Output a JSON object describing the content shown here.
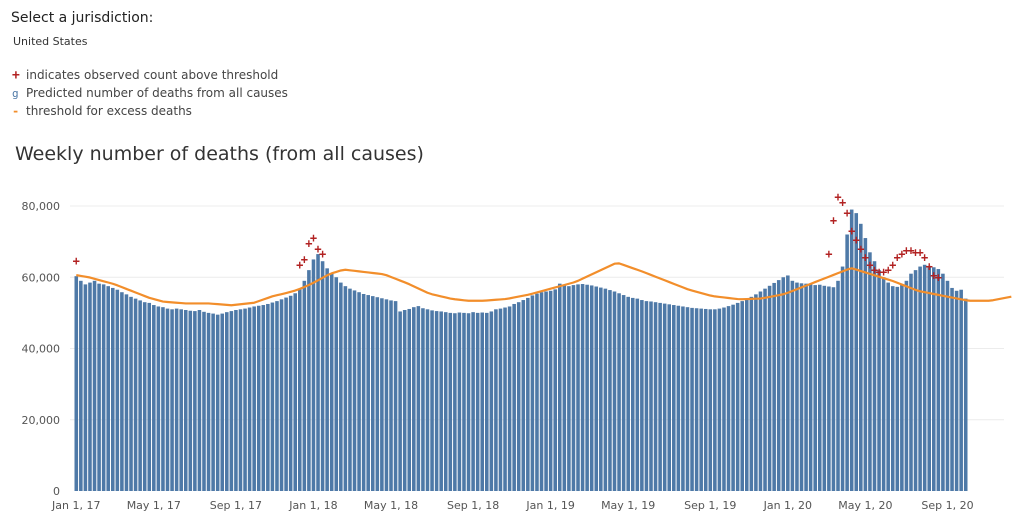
{
  "filter": {
    "label": "Select a jurisdiction:",
    "value": "United States"
  },
  "legend": {
    "items": [
      {
        "symbol": "+",
        "label": "indicates observed count above threshold"
      },
      {
        "symbol": "g",
        "label": "Predicted number of deaths from all causes"
      },
      {
        "symbol": "-",
        "label": "threshold for excess deaths"
      }
    ]
  },
  "colors": {
    "bar": "#4e79a7",
    "threshold": "#f28e2b",
    "marker": "#b22222",
    "grid": "#ececec"
  },
  "chart_data": {
    "type": "bar",
    "title": "Weekly number of deaths (from all causes)",
    "xlabel": "",
    "ylabel": "",
    "ylim": [
      0,
      88000
    ],
    "y_ticks": [
      0,
      20000,
      40000,
      60000,
      80000
    ],
    "y_tick_labels": [
      "0",
      "20,000",
      "40,000",
      "60,000",
      "80,000"
    ],
    "x_tick_labels": [
      {
        "week": 0,
        "label": "Jan 1, 17"
      },
      {
        "week": 17,
        "label": "May 1, 17"
      },
      {
        "week": 35,
        "label": "Sep 1, 17"
      },
      {
        "week": 52,
        "label": "Jan 1, 18"
      },
      {
        "week": 69,
        "label": "May 1, 18"
      },
      {
        "week": 87,
        "label": "Sep 1, 18"
      },
      {
        "week": 104,
        "label": "Jan 1, 19"
      },
      {
        "week": 121,
        "label": "May 1, 19"
      },
      {
        "week": 139,
        "label": "Sep 1, 19"
      },
      {
        "week": 156,
        "label": "Jan 1, 20"
      },
      {
        "week": 173,
        "label": "May 1, 20"
      },
      {
        "week": 191,
        "label": "Sep 1, 20"
      }
    ],
    "grid": true,
    "series": [
      {
        "name": "Predicted number of deaths from all causes",
        "values": [
          60300,
          59000,
          58000,
          58500,
          59000,
          58200,
          58000,
          57500,
          57000,
          56500,
          55800,
          55200,
          54500,
          54000,
          53500,
          53000,
          52800,
          52200,
          51800,
          51600,
          51200,
          51000,
          51200,
          51000,
          50800,
          50600,
          50500,
          50800,
          50300,
          50000,
          49800,
          49500,
          49800,
          50200,
          50500,
          50800,
          51000,
          51200,
          51500,
          51800,
          52000,
          52200,
          52500,
          52900,
          53300,
          53800,
          54300,
          54800,
          55500,
          56800,
          59000,
          62000,
          65000,
          66500,
          64500,
          62500,
          61000,
          60000,
          58500,
          57500,
          56800,
          56300,
          55800,
          55300,
          55000,
          54700,
          54400,
          54100,
          53800,
          53500,
          53300,
          50400,
          50800,
          51100,
          51600,
          51900,
          51300,
          51000,
          50700,
          50500,
          50400,
          50200,
          50000,
          49900,
          50100,
          50000,
          49900,
          50200,
          50000,
          50100,
          50000,
          50400,
          51000,
          51200,
          51500,
          51800,
          52500,
          53000,
          53600,
          54200,
          54900,
          55400,
          55800,
          56000,
          56200,
          56600,
          58200,
          57800,
          57500,
          57800,
          58000,
          58100,
          57900,
          57700,
          57400,
          57100,
          56800,
          56400,
          56000,
          55500,
          55000,
          54500,
          54200,
          54000,
          53600,
          53300,
          53200,
          53000,
          52800,
          52600,
          52400,
          52200,
          52000,
          51800,
          51600,
          51400,
          51300,
          51200,
          51100,
          51000,
          51000,
          51200,
          51500,
          51900,
          52300,
          52800,
          53300,
          53900,
          54500,
          55200,
          56000,
          56800,
          57600,
          58400,
          59200,
          60000,
          60500,
          59000,
          58500,
          58300,
          58200,
          58000,
          57800,
          57900,
          57600,
          57400,
          57200,
          59000,
          63000,
          72000,
          79000,
          78000,
          75000,
          71000,
          67000,
          64500,
          62000,
          60000,
          58500,
          57500,
          57300,
          57800,
          59000,
          61000,
          62000,
          63000,
          63500,
          63200,
          62800,
          62300,
          61000,
          59000,
          57000,
          56200,
          56500,
          54000
        ]
      },
      {
        "name": "threshold for excess deaths",
        "values": [
          60600,
          60375,
          60150,
          59925,
          59575,
          59225,
          58875,
          58525,
          58175,
          57725,
          57225,
          56725,
          56225,
          55725,
          55225,
          54725,
          54225,
          53875,
          53525,
          53175,
          53050,
          52950,
          52850,
          52750,
          52650,
          52650,
          52650,
          52650,
          52650,
          52650,
          52550,
          52450,
          52350,
          52250,
          52150,
          52290,
          52430,
          52570,
          52710,
          52850,
          53300,
          53750,
          54200,
          54650,
          54950,
          55250,
          55575,
          55925,
          56275,
          56725,
          57275,
          57825,
          58450,
          59150,
          59850,
          60550,
          61100,
          61500,
          61900,
          62100,
          61950,
          61800,
          61650,
          61500,
          61350,
          61200,
          61050,
          60900,
          60575,
          60075,
          59575,
          59075,
          58575,
          58050,
          57450,
          56850,
          56250,
          55650,
          55225,
          54925,
          54625,
          54325,
          54025,
          53825,
          53675,
          53525,
          53400,
          53400,
          53400,
          53400,
          53475,
          53575,
          53675,
          53775,
          53875,
          54075,
          54325,
          54575,
          54825,
          55075,
          55375,
          55725,
          56075,
          56425,
          56775,
          57125,
          57475,
          57825,
          58175,
          58525,
          59000,
          59600,
          60200,
          60800,
          61400,
          62000,
          62600,
          63200,
          63800,
          63900,
          63450,
          63000,
          62550,
          62100,
          61650,
          61150,
          60650,
          60150,
          59650,
          59150,
          58650,
          58150,
          57650,
          57150,
          56650,
          56275,
          55925,
          55575,
          55225,
          54875,
          54625,
          54475,
          54325,
          54175,
          54025,
          53875,
          53825,
          53875,
          53925,
          53975,
          54025,
          54225,
          54475,
          54725,
          54975,
          55225,
          55650,
          56150,
          56650,
          57150,
          57650,
          58150,
          58650,
          59150,
          59650,
          60150,
          60650,
          61150,
          61650,
          62150,
          62500,
          62150,
          61750,
          61350,
          60950,
          60550,
          60150,
          59750,
          59350,
          58950,
          58450,
          57950,
          57450,
          56950,
          56450,
          56050,
          55800,
          55550,
          55300,
          55050,
          54800,
          54550,
          54300,
          54050,
          53800,
          53550,
          53400,
          53400,
          53400,
          53400,
          53400,
          53550,
          53800,
          54050,
          54300,
          54550
        ]
      }
    ],
    "above_threshold": [
      {
        "week": 0,
        "value": 64500
      },
      {
        "week": 49,
        "value": 63500
      },
      {
        "week": 50,
        "value": 65000
      },
      {
        "week": 51,
        "value": 69500
      },
      {
        "week": 52,
        "value": 71000
      },
      {
        "week": 53,
        "value": 68000
      },
      {
        "week": 54,
        "value": 66500
      },
      {
        "week": 165,
        "value": 66500
      },
      {
        "week": 166,
        "value": 76000
      },
      {
        "week": 167,
        "value": 82500
      },
      {
        "week": 168,
        "value": 81000
      },
      {
        "week": 169,
        "value": 78000
      },
      {
        "week": 170,
        "value": 73000
      },
      {
        "week": 171,
        "value": 70500
      },
      {
        "week": 172,
        "value": 68000
      },
      {
        "week": 173,
        "value": 65500
      },
      {
        "week": 174,
        "value": 63500
      },
      {
        "week": 175,
        "value": 62000
      },
      {
        "week": 176,
        "value": 61500
      },
      {
        "week": 177,
        "value": 61500
      },
      {
        "week": 178,
        "value": 62000
      },
      {
        "week": 179,
        "value": 63500
      },
      {
        "week": 180,
        "value": 65500
      },
      {
        "week": 181,
        "value": 66500
      },
      {
        "week": 182,
        "value": 67500
      },
      {
        "week": 183,
        "value": 67500
      },
      {
        "week": 184,
        "value": 67000
      },
      {
        "week": 185,
        "value": 67000
      },
      {
        "week": 186,
        "value": 65500
      },
      {
        "week": 187,
        "value": 63000
      },
      {
        "week": 188,
        "value": 60500
      },
      {
        "week": 189,
        "value": 60000
      }
    ]
  }
}
